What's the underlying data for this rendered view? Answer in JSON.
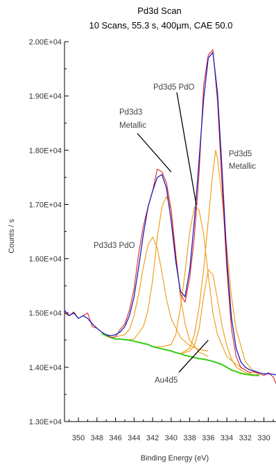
{
  "chart_data": {
    "type": "line",
    "title": "Pd3d Scan",
    "subtitle": "10 Scans,  55.3 s,  400µm,  CAE 50.0",
    "xlabel": "Binding Energy (eV)",
    "ylabel": "Counts / s",
    "xlim": [
      351.5,
      328.7
    ],
    "ylim": [
      13000,
      20000
    ],
    "x_reversed": true,
    "grid": false,
    "x_ticks": [
      350,
      348,
      346,
      344,
      342,
      340,
      338,
      336,
      334,
      332,
      330
    ],
    "x_tick_labels": [
      "350",
      "348",
      "346",
      "344",
      "342",
      "340",
      "338",
      "336",
      "334",
      "332",
      "330"
    ],
    "y_ticks": [
      13000,
      14000,
      15000,
      16000,
      17000,
      18000,
      19000,
      20000
    ],
    "y_tick_labels": [
      "1.30E+04",
      "1.40E+04",
      "1.50E+04",
      "1.60E+04",
      "1.70E+04",
      "1.80E+04",
      "1.90E+04",
      "2.00E+04"
    ],
    "colors": {
      "raw": "#dd1111",
      "fit": "#1a1ab8",
      "components": "#f0a020",
      "background": "#33cc11",
      "annotation": "#000000"
    },
    "series": [
      {
        "role": "raw",
        "x": [
          351.5,
          351,
          350.5,
          350,
          349.5,
          349,
          348.5,
          348,
          347.5,
          347,
          346.5,
          346,
          345.5,
          345,
          344.5,
          344,
          343.5,
          343,
          342.5,
          342,
          341.5,
          341,
          340.5,
          340,
          339.5,
          339,
          338.5,
          338,
          337.5,
          337,
          336.5,
          336,
          335.5,
          335,
          334.5,
          334,
          333.5,
          333,
          332.5,
          332,
          331.5,
          331,
          330.5,
          330,
          329.5,
          329,
          328.7
        ],
        "y": [
          15000,
          14950,
          15020,
          14900,
          14950,
          15000,
          14750,
          14720,
          14650,
          14600,
          14550,
          14560,
          14700,
          14800,
          15050,
          15450,
          16100,
          16600,
          16950,
          17250,
          17650,
          17600,
          17400,
          16900,
          16050,
          15350,
          15200,
          15650,
          16400,
          17550,
          19200,
          19750,
          19850,
          18900,
          17300,
          15800,
          14700,
          14200,
          14000,
          13950,
          13900,
          13920,
          13880,
          13850,
          13900,
          13820,
          13700
        ]
      },
      {
        "role": "fit",
        "x": [
          351.5,
          351,
          350.5,
          350,
          349.5,
          349,
          348.5,
          348,
          347.5,
          347,
          346.5,
          346,
          345.5,
          345,
          344.5,
          344,
          343.5,
          343,
          342.5,
          342,
          341.5,
          341,
          340.5,
          340,
          339.5,
          339,
          338.5,
          338,
          337.5,
          337,
          336.5,
          336,
          335.5,
          335,
          334.5,
          334,
          333.5,
          333,
          332.5,
          332,
          331.5,
          331,
          330.5,
          330,
          329.5,
          329,
          328.7
        ],
        "y": [
          15050,
          14950,
          15000,
          14900,
          14950,
          14900,
          14800,
          14720,
          14650,
          14600,
          14580,
          14600,
          14650,
          14750,
          14950,
          15300,
          15850,
          16450,
          16950,
          17250,
          17500,
          17550,
          17300,
          16700,
          15950,
          15400,
          15300,
          15800,
          16700,
          17800,
          18950,
          19700,
          19800,
          19050,
          17600,
          16000,
          14900,
          14350,
          14100,
          14000,
          13950,
          13930,
          13900,
          13880,
          13880,
          13870,
          13860
        ]
      },
      {
        "role": "background",
        "x": [
          347.5,
          347,
          346.5,
          346,
          345.5,
          345,
          344.5,
          344,
          343.5,
          343,
          342.5,
          342,
          341.5,
          341,
          340.5,
          340,
          339.5,
          339,
          338.5,
          338,
          337.5,
          337,
          336.5,
          336,
          335.5,
          335,
          334.5,
          334,
          333.5,
          333,
          332.5,
          332,
          331.5,
          331,
          330.5
        ],
        "y": [
          14620,
          14580,
          14550,
          14520,
          14520,
          14510,
          14500,
          14480,
          14460,
          14440,
          14420,
          14380,
          14360,
          14340,
          14320,
          14300,
          14270,
          14250,
          14220,
          14200,
          14180,
          14160,
          14150,
          14130,
          14110,
          14080,
          14050,
          14000,
          13950,
          13920,
          13890,
          13870,
          13860,
          13850,
          13850
        ]
      },
      {
        "role": "component",
        "label": "Pd3d3 PdO",
        "x": [
          346,
          345,
          344.5,
          344,
          343.5,
          343,
          342.5,
          342,
          341.5,
          341,
          340.5,
          340,
          339,
          338,
          337,
          336
        ],
        "y": [
          14560,
          14600,
          14700,
          14950,
          15350,
          15850,
          16250,
          16400,
          16200,
          15750,
          15250,
          14900,
          14550,
          14400,
          14330,
          14300
        ]
      },
      {
        "role": "component",
        "label": "Pd3d3 Metallic",
        "x": [
          345,
          344,
          343,
          342.5,
          342,
          341.5,
          341,
          340.5,
          340,
          339.5,
          339,
          338.5,
          338,
          337,
          336
        ],
        "y": [
          14500,
          14520,
          14750,
          15050,
          15600,
          16400,
          16950,
          17150,
          16900,
          16100,
          15300,
          14800,
          14500,
          14280,
          14200
        ]
      },
      {
        "role": "component",
        "label": "Pd3d5 PdO",
        "x": [
          342,
          341,
          340,
          339.5,
          339,
          338.5,
          338,
          337.5,
          337,
          336.5,
          336,
          335.5,
          335,
          334,
          333,
          332
        ],
        "y": [
          14380,
          14380,
          14420,
          14600,
          15100,
          15750,
          16500,
          16950,
          16900,
          16450,
          15700,
          15000,
          14600,
          14200,
          14050,
          13950
        ]
      },
      {
        "role": "component",
        "label": "Pd3d5 Metallic",
        "x": [
          340,
          339,
          338,
          337.5,
          337,
          336.5,
          336,
          335.5,
          335.2,
          335,
          334.5,
          334,
          333.5,
          333,
          332,
          331,
          330.5
        ],
        "y": [
          14300,
          14250,
          14350,
          14600,
          15100,
          15800,
          16700,
          17600,
          18000,
          17850,
          17100,
          16200,
          15300,
          14700,
          14100,
          13900,
          13850
        ]
      },
      {
        "role": "component",
        "label": "Au4d5",
        "x": [
          340,
          339,
          338,
          337.5,
          337,
          336.5,
          336,
          335.5,
          335,
          334.5,
          334,
          333.5,
          333,
          332,
          331,
          330.5
        ],
        "y": [
          14300,
          14250,
          14300,
          14400,
          14700,
          15300,
          15800,
          15700,
          15250,
          14750,
          14400,
          14150,
          14000,
          13900,
          13860,
          13850
        ]
      }
    ],
    "annotations": [
      {
        "text_lines": [
          "Pd3d5 PdO"
        ],
        "arrow_to": [
          337.3,
          17000
        ]
      },
      {
        "text_lines": [
          "Pd3d3",
          "Metallic"
        ],
        "arrow_to": [
          340.0,
          17600
        ]
      },
      {
        "text_lines": [
          "Pd3d5",
          "Metallic"
        ],
        "arrow_to": null
      },
      {
        "text_lines": [
          "Pd3d3 PdO"
        ],
        "arrow_to": null
      },
      {
        "text_lines": [
          "Au4d5"
        ],
        "arrow_to": [
          336.0,
          14500
        ]
      }
    ]
  }
}
